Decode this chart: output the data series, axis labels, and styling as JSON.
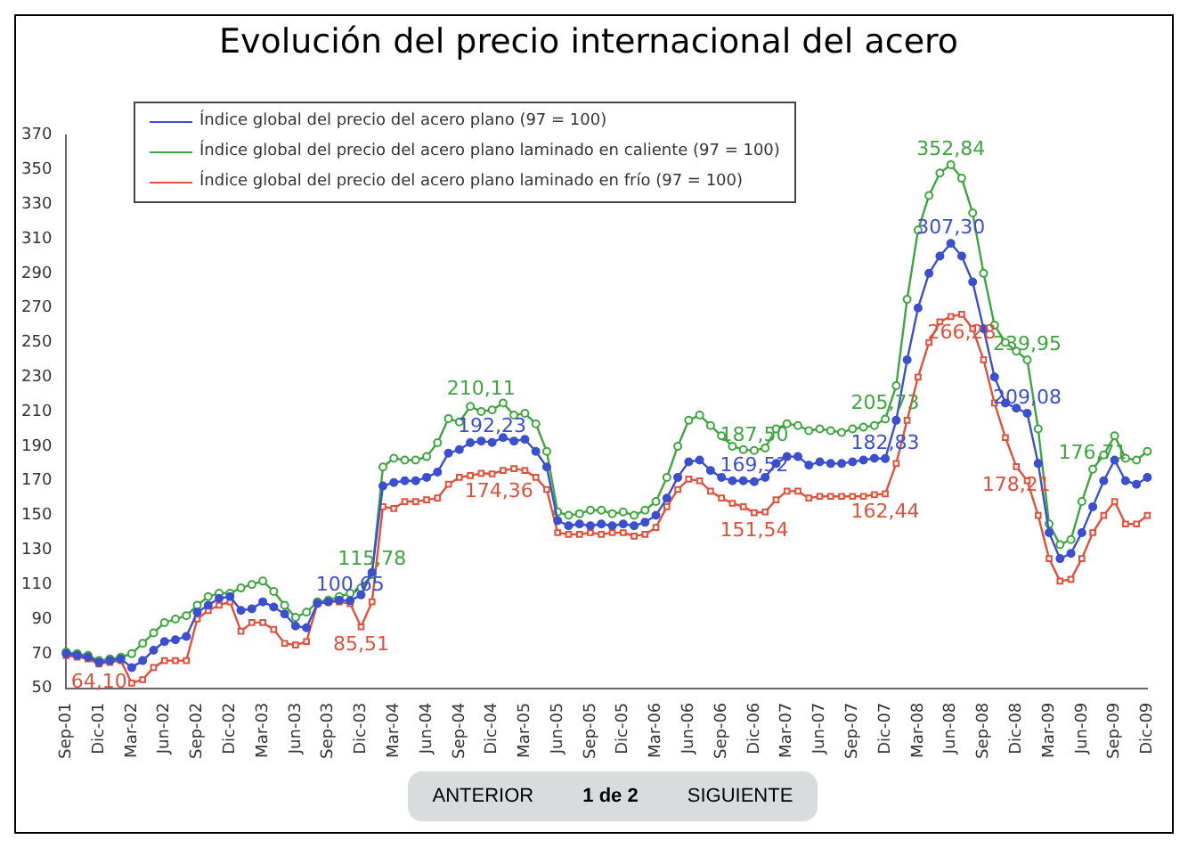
{
  "chart_data": {
    "type": "line",
    "title": "Evolución del precio internacional del acero",
    "categories": [
      "Sep-01",
      null,
      null,
      "Dic-01",
      null,
      null,
      "Mar-02",
      null,
      null,
      "Jun-02",
      null,
      null,
      "Sep-02",
      null,
      null,
      "Dic-02",
      null,
      null,
      "Mar-03",
      null,
      null,
      "Jun-03",
      null,
      null,
      "Sep-03",
      null,
      null,
      "Dic-03",
      null,
      null,
      "Mar-04",
      null,
      null,
      "Jun-04",
      null,
      null,
      "Sep-04",
      null,
      null,
      "Dic-04",
      null,
      null,
      "Mar-05",
      null,
      null,
      "Jun-05",
      null,
      null,
      "Sep-05",
      null,
      null,
      "Dic-05",
      null,
      null,
      "Mar-06",
      null,
      null,
      "Jun-06",
      null,
      null,
      "Sep-06",
      null,
      null,
      "Dic-06",
      null,
      null,
      "Mar-07",
      null,
      null,
      "Jun-07",
      null,
      null,
      "Sep-07",
      null,
      null,
      "Dic-07",
      null,
      null,
      "Mar-08",
      null,
      null,
      "Jun-08",
      null,
      null,
      "Sep-08",
      null,
      null,
      "Dic-08",
      null,
      null,
      "Mar-09",
      null,
      null,
      "Jun-09",
      null,
      null,
      "Sep-09",
      null,
      null,
      "Dic-09"
    ],
    "series": [
      {
        "name": "Índice global del precio del acero plano (97 = 100)",
        "color": "#3b4fd0",
        "values": [
          70,
          69,
          68,
          65,
          66,
          67,
          62,
          66,
          72,
          77,
          78,
          80,
          94,
          98,
          102,
          103,
          95,
          96,
          100,
          97,
          93,
          86,
          85,
          99,
          100,
          101,
          100.65,
          104,
          117,
          167,
          169,
          170,
          170,
          172,
          175,
          186,
          188,
          192,
          193,
          192.23,
          195,
          193,
          194,
          187,
          178,
          147,
          144,
          145,
          144,
          145,
          144,
          145,
          144,
          146,
          150,
          160,
          172,
          181,
          182,
          176,
          172,
          170,
          170,
          169.52,
          172,
          180,
          184,
          184,
          179,
          181,
          180,
          180,
          181,
          182,
          183,
          182.83,
          205,
          240,
          270,
          290,
          300,
          307.3,
          300,
          285,
          258,
          230,
          215,
          212,
          209.08,
          180,
          140,
          125,
          128,
          140,
          155,
          170,
          182,
          170,
          168,
          172
        ],
        "value_labels": [
          null,
          null,
          null,
          null,
          null,
          null,
          null,
          null,
          null,
          null,
          null,
          null,
          null,
          null,
          null,
          null,
          null,
          null,
          null,
          null,
          null,
          null,
          null,
          null,
          null,
          null,
          "100,65",
          null,
          null,
          null,
          null,
          null,
          null,
          null,
          null,
          null,
          null,
          null,
          null,
          "192,23",
          null,
          null,
          null,
          null,
          null,
          null,
          null,
          null,
          null,
          null,
          null,
          null,
          null,
          null,
          null,
          null,
          null,
          null,
          null,
          null,
          null,
          null,
          null,
          "169,52",
          null,
          null,
          null,
          null,
          null,
          null,
          null,
          null,
          null,
          null,
          null,
          "182,83",
          null,
          null,
          null,
          null,
          null,
          "307,30",
          null,
          null,
          null,
          null,
          null,
          null,
          "209,08",
          null,
          null,
          null,
          null,
          null,
          null,
          null,
          null,
          null,
          null,
          null
        ]
      },
      {
        "name": "Índice global del precio del acero plano laminado en caliente (97 = 100)",
        "color": "#3fa53f",
        "values": [
          71,
          70,
          69,
          66,
          67,
          68,
          70,
          76,
          82,
          88,
          90,
          92,
          98,
          103,
          105,
          105,
          108,
          110,
          112,
          106,
          98,
          91,
          94,
          100,
          101,
          103,
          105,
          108,
          115.78,
          178,
          183,
          182,
          182,
          184,
          192,
          206,
          204,
          213,
          210.11,
          211,
          215,
          208,
          209,
          203,
          187,
          152,
          150,
          151,
          153,
          153,
          151,
          152,
          150,
          153,
          158,
          172,
          190,
          205,
          208,
          202,
          196,
          190,
          188,
          187.5,
          189,
          200,
          203,
          202,
          199,
          200,
          199,
          198,
          200,
          201,
          202,
          205.73,
          225,
          275,
          315,
          335,
          348,
          352.84,
          345,
          325,
          290,
          260,
          250,
          245,
          239.95,
          200,
          145,
          133,
          136,
          158,
          176.71,
          185,
          196,
          183,
          182,
          187
        ],
        "value_labels": [
          null,
          null,
          null,
          null,
          null,
          null,
          null,
          null,
          null,
          null,
          null,
          null,
          null,
          null,
          null,
          null,
          null,
          null,
          null,
          null,
          null,
          null,
          null,
          null,
          null,
          null,
          null,
          null,
          "115,78",
          null,
          null,
          null,
          null,
          null,
          null,
          null,
          null,
          null,
          "210,11",
          null,
          null,
          null,
          null,
          null,
          null,
          null,
          null,
          null,
          null,
          null,
          null,
          null,
          null,
          null,
          null,
          null,
          null,
          null,
          null,
          null,
          null,
          null,
          null,
          "187,50",
          null,
          null,
          null,
          null,
          null,
          null,
          null,
          null,
          null,
          null,
          null,
          "205,73",
          null,
          null,
          null,
          null,
          null,
          "352,84",
          null,
          null,
          null,
          null,
          null,
          null,
          "239,95",
          null,
          null,
          null,
          null,
          null,
          "176,71",
          null,
          null,
          null,
          null,
          null
        ]
      },
      {
        "name": "Índice global del precio del acero plano laminado en frío (97 = 100)",
        "color": "#e0503a",
        "marker": "square",
        "values": [
          69,
          68,
          67,
          64.1,
          65,
          66,
          53,
          55,
          62,
          66,
          66,
          66,
          90,
          95,
          98,
          100,
          83,
          88,
          88,
          84,
          76,
          75,
          77,
          99,
          100,
          100,
          99,
          85.51,
          100,
          155,
          154,
          158,
          158,
          159,
          160,
          168,
          172,
          173,
          174.36,
          174,
          176,
          177,
          176,
          172,
          165,
          140,
          139,
          139,
          140,
          139,
          140,
          140,
          138,
          139,
          143,
          155,
          165,
          171,
          170,
          164,
          160,
          157,
          155,
          151.54,
          152,
          159,
          164,
          164,
          160,
          161,
          161,
          161,
          161,
          161,
          162,
          162.44,
          180,
          205,
          230,
          250,
          262,
          265,
          266.28,
          258,
          240,
          215,
          195,
          178.21,
          170,
          150,
          125,
          112,
          113,
          125,
          140,
          150,
          158,
          145,
          145,
          150
        ],
        "value_labels": [
          null,
          null,
          null,
          "64,10",
          null,
          null,
          null,
          null,
          null,
          null,
          null,
          null,
          null,
          null,
          null,
          null,
          null,
          null,
          null,
          null,
          null,
          null,
          null,
          null,
          null,
          null,
          null,
          "85,51",
          null,
          null,
          null,
          null,
          null,
          null,
          null,
          null,
          null,
          null,
          "174,36",
          null,
          null,
          null,
          null,
          null,
          null,
          null,
          null,
          null,
          null,
          null,
          null,
          null,
          null,
          null,
          null,
          null,
          null,
          null,
          null,
          null,
          null,
          null,
          null,
          "151,54",
          null,
          null,
          null,
          null,
          null,
          null,
          null,
          null,
          null,
          null,
          null,
          "162,44",
          null,
          null,
          null,
          null,
          null,
          null,
          "266,28",
          null,
          null,
          null,
          null,
          "178,21",
          null,
          null,
          null,
          null,
          null,
          null,
          null,
          null,
          null,
          null,
          null,
          null
        ]
      }
    ],
    "ylim": [
      50,
      370
    ],
    "yticks": [
      50,
      70,
      90,
      110,
      130,
      150,
      170,
      190,
      210,
      230,
      250,
      270,
      290,
      310,
      330,
      350,
      370
    ],
    "grid": false,
    "legend": "top left",
    "marker": "circle",
    "line_style": "solid",
    "annotations": [
      "ANTERIOR",
      "1 de 2",
      "SIGUIENTE"
    ]
  }
}
